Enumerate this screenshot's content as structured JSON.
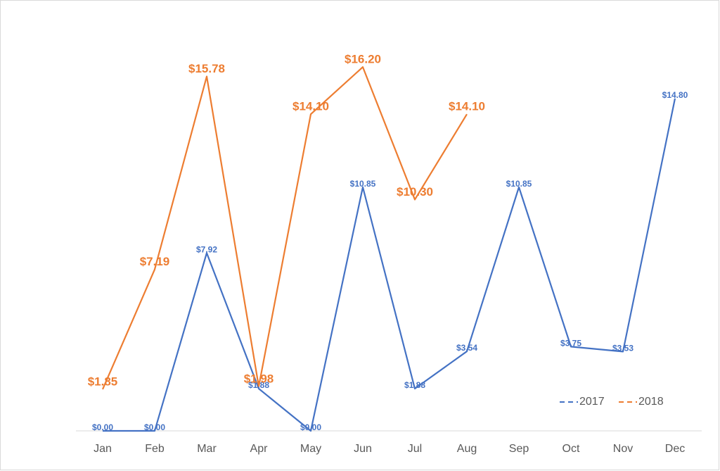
{
  "chart_data": {
    "type": "line",
    "categories": [
      "Jan",
      "Feb",
      "Mar",
      "Apr",
      "May",
      "Jun",
      "Jul",
      "Aug",
      "Sep",
      "Oct",
      "Nov",
      "Dec"
    ],
    "series": [
      {
        "name": "2017",
        "color": "#4472c4",
        "values": [
          0,
          0,
          7.92,
          1.88,
          0,
          10.85,
          1.88,
          3.54,
          10.85,
          3.75,
          3.53,
          14.8
        ],
        "value_labels": [
          "$0.00",
          "$0.00",
          "$7.92",
          "$1.88",
          "$0.00",
          "$10.85",
          "$1.88",
          "$3.54",
          "$10.85",
          "$3.75",
          "$3.53",
          "$14.80"
        ]
      },
      {
        "name": "2018",
        "color": "#ed7d31",
        "values": [
          1.85,
          7.19,
          15.78,
          1.98,
          14.1,
          16.2,
          10.3,
          14.1,
          null,
          null,
          null,
          null
        ],
        "value_labels": [
          "$1.85",
          "$7.19",
          "$15.78",
          "$1.98",
          "$14.10",
          "$16.20",
          "$10.30",
          "$14.10",
          null,
          null,
          null,
          null
        ]
      }
    ],
    "legend": "bottom-right"
  }
}
